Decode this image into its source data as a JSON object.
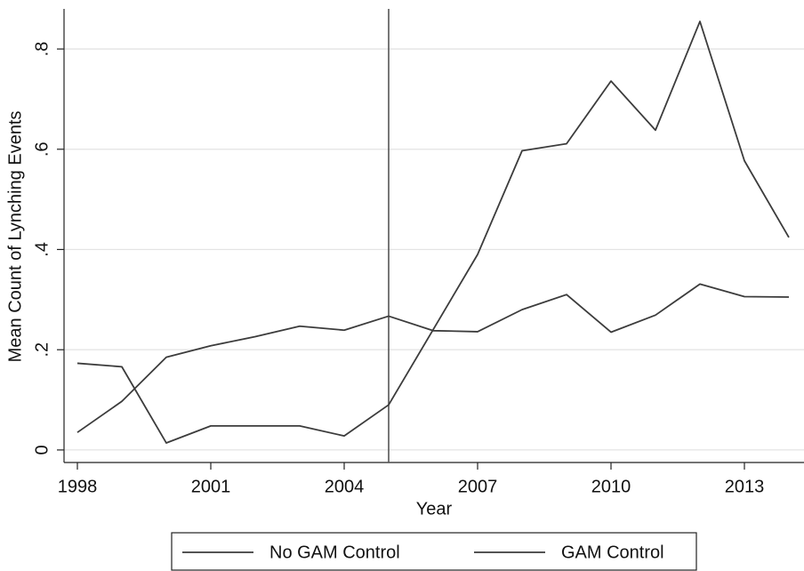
{
  "chart_data": {
    "type": "line",
    "x_label": "Year",
    "y_label": "Mean Count of Lynching Events",
    "x": [
      1998,
      1999,
      2000,
      2001,
      2002,
      2003,
      2004,
      2005,
      2006,
      2007,
      2008,
      2009,
      2010,
      2011,
      2012,
      2013,
      2014
    ],
    "series": [
      {
        "name": "No GAM Control",
        "color": "#3c3c3c",
        "values": [
          0.173,
          0.166,
          0.014,
          0.048,
          0.048,
          0.048,
          0.028,
          0.09,
          0.24,
          0.39,
          0.597,
          0.611,
          0.736,
          0.638,
          0.855,
          0.577,
          0.424
        ]
      },
      {
        "name": "GAM Control",
        "color": "#3c3c3c",
        "values": [
          0.035,
          0.097,
          0.185,
          0.208,
          0.226,
          0.247,
          0.239,
          0.267,
          0.238,
          0.236,
          0.28,
          0.31,
          0.235,
          0.269,
          0.331,
          0.306,
          0.305
        ]
      }
    ],
    "xlim": [
      1997.7,
      2014.34
    ],
    "xticks": [
      1998,
      2001,
      2004,
      2007,
      2010,
      2013
    ],
    "ylim": [
      -0.025,
      0.88
    ],
    "yticks": [
      0,
      {
        "value": 0.2,
        "label": ".2"
      },
      {
        "value": 0.4,
        "label": ".4"
      },
      {
        "value": 0.6,
        "label": ".6"
      },
      {
        "value": 0.8,
        "label": ".8"
      }
    ],
    "vline": 2005,
    "grid": true,
    "legend": "bottom"
  }
}
